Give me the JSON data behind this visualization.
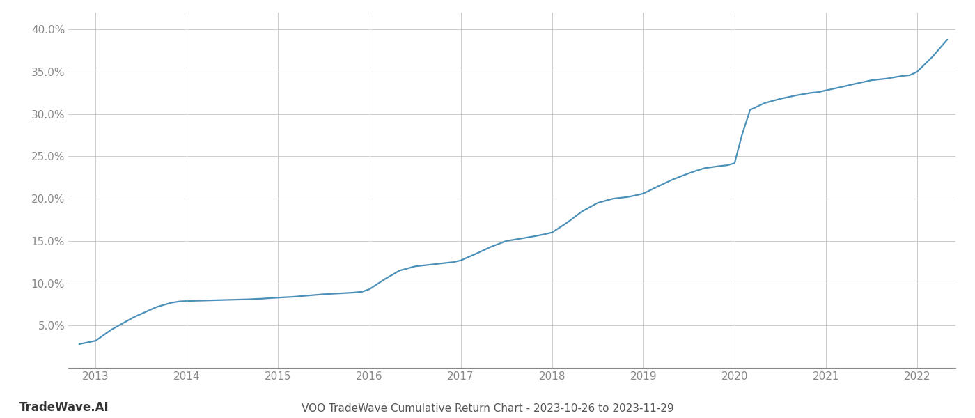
{
  "title": "VOO TradeWave Cumulative Return Chart - 2023-10-26 to 2023-11-29",
  "watermark": "TradeWave.AI",
  "line_color": "#4a90b8",
  "background_color": "#ffffff",
  "grid_color": "#cccccc",
  "x_years": [
    2013,
    2014,
    2015,
    2016,
    2017,
    2018,
    2019,
    2020,
    2021,
    2022
  ],
  "data_x": [
    2012.82,
    2013.0,
    2013.17,
    2013.42,
    2013.67,
    2013.83,
    2013.92,
    2014.0,
    2014.17,
    2014.33,
    2014.5,
    2014.67,
    2014.83,
    2014.92,
    2015.0,
    2015.17,
    2015.33,
    2015.5,
    2015.67,
    2015.83,
    2015.92,
    2016.0,
    2016.17,
    2016.33,
    2016.5,
    2016.67,
    2016.83,
    2016.92,
    2017.0,
    2017.17,
    2017.33,
    2017.5,
    2017.67,
    2017.83,
    2017.92,
    2018.0,
    2018.17,
    2018.33,
    2018.5,
    2018.67,
    2018.83,
    2018.92,
    2019.0,
    2019.17,
    2019.33,
    2019.5,
    2019.58,
    2019.67,
    2019.83,
    2019.92,
    2020.0,
    2020.08,
    2020.17,
    2020.33,
    2020.5,
    2020.67,
    2020.83,
    2020.92,
    2021.0,
    2021.17,
    2021.33,
    2021.5,
    2021.67,
    2021.83,
    2021.92,
    2022.0,
    2022.17,
    2022.33
  ],
  "data_y": [
    2.8,
    3.2,
    4.5,
    6.0,
    7.2,
    7.7,
    7.85,
    7.9,
    7.95,
    8.0,
    8.05,
    8.1,
    8.18,
    8.25,
    8.3,
    8.4,
    8.55,
    8.7,
    8.8,
    8.9,
    9.0,
    9.3,
    10.5,
    11.5,
    12.0,
    12.2,
    12.4,
    12.5,
    12.7,
    13.5,
    14.3,
    15.0,
    15.3,
    15.6,
    15.8,
    16.0,
    17.2,
    18.5,
    19.5,
    20.0,
    20.2,
    20.4,
    20.6,
    21.5,
    22.3,
    23.0,
    23.3,
    23.6,
    23.85,
    23.95,
    24.2,
    27.5,
    30.5,
    31.3,
    31.8,
    32.2,
    32.5,
    32.6,
    32.8,
    33.2,
    33.6,
    34.0,
    34.2,
    34.5,
    34.6,
    35.0,
    36.8,
    38.8
  ],
  "ylim": [
    0,
    42
  ],
  "xlim": [
    2012.7,
    2022.42
  ],
  "yticks": [
    5.0,
    10.0,
    15.0,
    20.0,
    25.0,
    30.0,
    35.0,
    40.0
  ],
  "title_fontsize": 11,
  "watermark_fontsize": 12,
  "tick_fontsize": 11,
  "line_width": 1.6,
  "tick_color": "#888888",
  "title_color": "#555555",
  "watermark_color": "#333333",
  "spine_color": "#888888"
}
